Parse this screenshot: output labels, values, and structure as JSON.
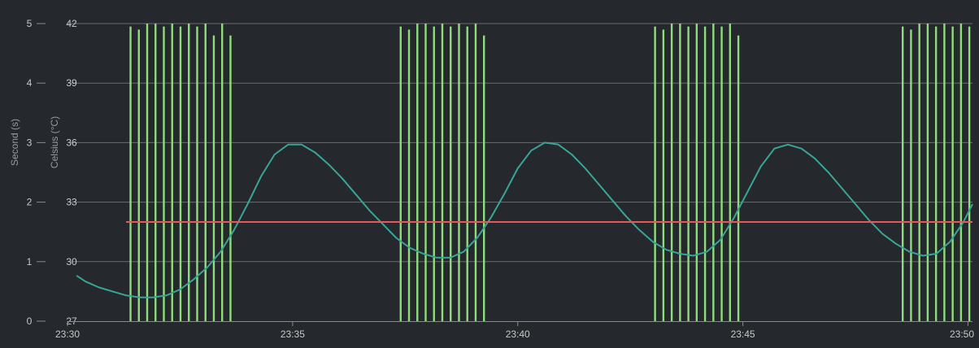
{
  "chart_data": {
    "type": "line",
    "title": "",
    "x_ticks": [
      "23:30",
      "23:35",
      "23:40",
      "23:45",
      "23:50"
    ],
    "x_range_minutes": [
      0,
      20.1
    ],
    "left_axis_outer": {
      "label": "Second (s)",
      "ticks": [
        "0",
        "1",
        "2",
        "3",
        "4",
        "5"
      ],
      "range": [
        0,
        5
      ]
    },
    "left_axis_inner": {
      "label": "Celsius (°C)",
      "ticks": [
        "27",
        "30",
        "33",
        "36",
        "39",
        "42"
      ],
      "range": [
        27,
        42
      ]
    },
    "grid": true,
    "series": [
      {
        "type": "line",
        "axis": "celsius",
        "color": "#3aa597",
        "x_minutes": [
          0.2,
          0.4,
          0.7,
          1.0,
          1.3,
          1.6,
          1.9,
          2.2,
          2.5,
          2.8,
          3.1,
          3.4,
          3.7,
          4.0,
          4.3,
          4.6,
          4.9,
          5.2,
          5.5,
          5.8,
          6.1,
          6.4,
          6.7,
          7.0,
          7.3,
          7.6,
          7.9,
          8.2,
          8.5,
          8.8,
          9.1,
          9.4,
          9.7,
          10.0,
          10.3,
          10.6,
          10.9,
          11.2,
          11.5,
          11.8,
          12.1,
          12.4,
          12.7,
          13.0,
          13.3,
          13.6,
          13.9,
          14.2,
          14.5,
          14.8,
          15.1,
          15.4,
          15.7,
          16.0,
          16.3,
          16.6,
          16.9,
          17.2,
          17.5,
          17.8,
          18.1,
          18.4,
          18.7,
          19.0,
          19.3,
          19.6,
          19.9,
          20.1
        ],
        "values": [
          29.3,
          29.0,
          28.7,
          28.5,
          28.3,
          28.2,
          28.2,
          28.3,
          28.6,
          29.1,
          29.7,
          30.5,
          31.6,
          32.9,
          34.3,
          35.4,
          35.9,
          35.9,
          35.5,
          34.9,
          34.2,
          33.4,
          32.6,
          31.9,
          31.2,
          30.7,
          30.4,
          30.2,
          30.2,
          30.5,
          31.2,
          32.2,
          33.4,
          34.7,
          35.6,
          36.0,
          35.9,
          35.4,
          34.7,
          33.9,
          33.1,
          32.3,
          31.6,
          31.0,
          30.6,
          30.4,
          30.3,
          30.5,
          31.1,
          32.2,
          33.5,
          34.8,
          35.7,
          35.9,
          35.7,
          35.2,
          34.5,
          33.7,
          32.9,
          32.1,
          31.4,
          30.9,
          30.5,
          30.3,
          30.4,
          31.0,
          32.0,
          32.9
        ]
      },
      {
        "type": "line",
        "axis": "celsius",
        "color": "#e8575a",
        "x_minutes": [
          1.3,
          20.1
        ],
        "values": [
          32.0,
          32.0
        ]
      },
      {
        "type": "bar",
        "axis": "second",
        "color": "#8fdc7a",
        "bursts": [
          {
            "start_minute": 1.4,
            "end_minute": 3.65
          },
          {
            "start_minute": 7.4,
            "end_minute": 9.4
          },
          {
            "start_minute": 13.05,
            "end_minute": 15.05
          },
          {
            "start_minute": 18.55,
            "end_minute": 20.1
          }
        ],
        "values_pattern": [
          4.95,
          4.9,
          5.0,
          5.0,
          4.95,
          5.0,
          4.95,
          5.0,
          4.95,
          5.0,
          4.8,
          5.0,
          4.8,
          5.0
        ]
      }
    ]
  }
}
